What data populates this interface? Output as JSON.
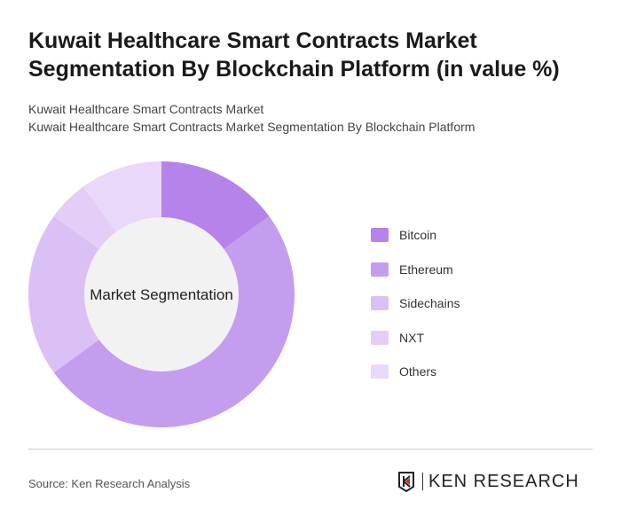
{
  "title": "Kuwait Healthcare Smart Contracts Market Segmentation By Blockchain Platform (in value %)",
  "subtitle1": "Kuwait Healthcare Smart Contracts Market",
  "subtitle2": "Kuwait Healthcare Smart Contracts Market Segmentation By Blockchain Platform",
  "source": "Source: Ken Research Analysis",
  "logo_text": "KEN RESEARCH",
  "chart_data": {
    "type": "pie",
    "donut": true,
    "center_label": "Market Segmentation",
    "categories": [
      "Bitcoin",
      "Ethereum",
      "Sidechains",
      "NXT",
      "Others"
    ],
    "values": [
      15,
      50,
      20,
      5,
      10
    ],
    "colors": [
      "#b583e9",
      "#c59def",
      "#dbc0f5",
      "#e4cdf7",
      "#e9d8f9"
    ],
    "legend_position": "right"
  }
}
